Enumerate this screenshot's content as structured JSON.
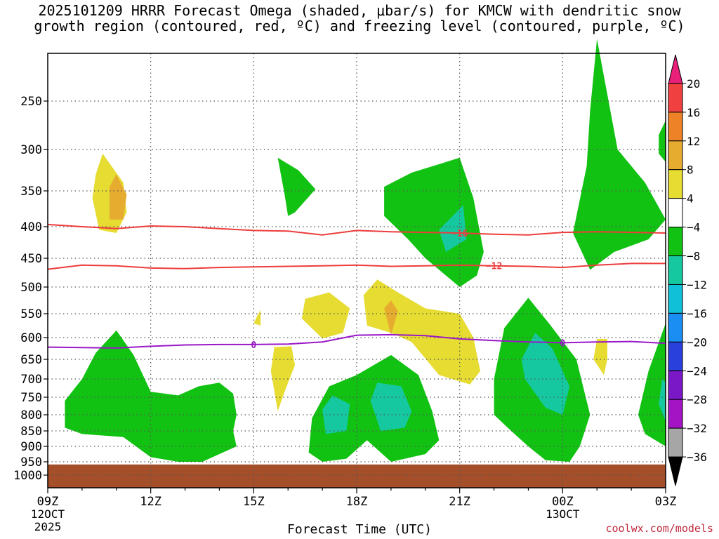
{
  "title_line1": "2025101209 HRRR Forecast Omega (shaded, μbar/s) for KMCW with dendritic snow",
  "title_line2": "growth region (contoured, red, ºC) and freezing level (contoured, purple, ºC)",
  "credit": "coolwx.com/models",
  "chart_data": {
    "type": "heatmap",
    "title": "2025101209 HRRR Forecast Omega (shaded, μbar/s) for KMCW with dendritic snow growth region (contoured, red, ºC) and freezing level (contoured, purple, ºC)",
    "xlabel": "Forecast Time (UTC)",
    "ylabel": "Pressure (hPa)",
    "x_range_hours": [
      0,
      18
    ],
    "y_levels": [
      250,
      300,
      350,
      400,
      450,
      500,
      550,
      600,
      650,
      700,
      750,
      800,
      850,
      900,
      950,
      1000
    ],
    "x_ticks": [
      {
        "h": 0,
        "label": "09Z",
        "sub1": "12OCT",
        "sub2": "2025"
      },
      {
        "h": 3,
        "label": "12Z",
        "sub1": "",
        "sub2": ""
      },
      {
        "h": 6,
        "label": "15Z",
        "sub1": "",
        "sub2": ""
      },
      {
        "h": 9,
        "label": "18Z",
        "sub1": "",
        "sub2": ""
      },
      {
        "h": 12,
        "label": "21Z",
        "sub1": "",
        "sub2": ""
      },
      {
        "h": 15,
        "label": "00Z",
        "sub1": "13OCT",
        "sub2": ""
      },
      {
        "h": 18,
        "label": "03Z",
        "sub1": "",
        "sub2": ""
      }
    ],
    "colorbar": {
      "labels": [
        "20",
        "16",
        "12",
        "8",
        "4",
        "−4",
        "−8",
        "−12",
        "−16",
        "−20",
        "−24",
        "−28",
        "−32",
        "−36"
      ],
      "colors": [
        "#e8207a",
        "#f04040",
        "#ee8226",
        "#e6ac30",
        "#e6dc32",
        "#ffffff",
        "#12c212",
        "#16c8a0",
        "#10c0d8",
        "#1a8ef2",
        "#2a40dc",
        "#7a18c8",
        "#a414c4",
        "#a6a6a6",
        "#000000"
      ]
    },
    "contours": [
      {
        "name": "-16",
        "color": "#ee3c3c",
        "label": "−16",
        "points": [
          [
            0,
            397
          ],
          [
            1,
            400
          ],
          [
            2,
            403
          ],
          [
            3,
            399
          ],
          [
            4,
            400
          ],
          [
            5,
            403
          ],
          [
            6,
            406
          ],
          [
            7,
            407
          ],
          [
            8,
            413
          ],
          [
            9,
            406
          ],
          [
            10,
            408
          ],
          [
            11,
            409
          ],
          [
            12,
            410
          ],
          [
            13,
            412
          ],
          [
            14,
            413
          ],
          [
            15,
            409
          ],
          [
            16,
            408
          ],
          [
            17,
            409
          ],
          [
            18,
            410
          ]
        ]
      },
      {
        "name": "-12",
        "color": "#ee3c3c",
        "label": "−12",
        "points": [
          [
            0,
            469
          ],
          [
            1,
            462
          ],
          [
            2,
            463
          ],
          [
            3,
            467
          ],
          [
            4,
            468
          ],
          [
            5,
            466
          ],
          [
            6,
            465
          ],
          [
            7,
            464
          ],
          [
            8,
            463
          ],
          [
            9,
            462
          ],
          [
            10,
            464
          ],
          [
            11,
            463
          ],
          [
            12,
            462
          ],
          [
            13,
            463
          ],
          [
            14,
            464
          ],
          [
            15,
            466
          ],
          [
            16,
            462
          ],
          [
            17,
            459
          ],
          [
            18,
            459
          ]
        ]
      },
      {
        "name": "0",
        "color": "#9a18c8",
        "label": "0",
        "points": [
          [
            0,
            622
          ],
          [
            1,
            623
          ],
          [
            2,
            624
          ],
          [
            3,
            620
          ],
          [
            4,
            617
          ],
          [
            5,
            616
          ],
          [
            6,
            616
          ],
          [
            7,
            615
          ],
          [
            8,
            610
          ],
          [
            9,
            595
          ],
          [
            10,
            594
          ],
          [
            11,
            596
          ],
          [
            12,
            603
          ],
          [
            13,
            607
          ],
          [
            14,
            610
          ],
          [
            15,
            612
          ],
          [
            16,
            610
          ],
          [
            17,
            609
          ],
          [
            18,
            613
          ]
        ]
      }
    ],
    "omega_regions": [
      {
        "category": "4 to 8",
        "points": [
          [
            1.4,
            330
          ],
          [
            1.6,
            305
          ],
          [
            2.2,
            340
          ],
          [
            2.3,
            380
          ],
          [
            2.0,
            410
          ],
          [
            1.5,
            405
          ],
          [
            1.3,
            360
          ]
        ]
      },
      {
        "category": "8 to 12",
        "points": [
          [
            1.8,
            345
          ],
          [
            2.0,
            330
          ],
          [
            2.3,
            355
          ],
          [
            2.2,
            390
          ],
          [
            1.8,
            390
          ]
        ]
      },
      {
        "category": "4 to 8",
        "points": [
          [
            6.1,
            555
          ],
          [
            6.2,
            543
          ],
          [
            6.2,
            575
          ],
          [
            6.0,
            570
          ]
        ]
      },
      {
        "category": "4 to 8",
        "points": [
          [
            6.6,
            622
          ],
          [
            7.1,
            620
          ],
          [
            7.2,
            665
          ],
          [
            6.9,
            735
          ],
          [
            6.7,
            790
          ],
          [
            6.5,
            680
          ]
        ]
      },
      {
        "category": "4 to 8",
        "points": [
          [
            7.5,
            522
          ],
          [
            8.2,
            510
          ],
          [
            8.8,
            540
          ],
          [
            8.6,
            590
          ],
          [
            8.0,
            602
          ],
          [
            7.4,
            560
          ]
        ]
      },
      {
        "category": "4 to 8",
        "points": [
          [
            9.2,
            515
          ],
          [
            9.6,
            487
          ],
          [
            10.2,
            510
          ],
          [
            11.0,
            540
          ],
          [
            12.0,
            550
          ],
          [
            12.4,
            600
          ],
          [
            12.6,
            680
          ],
          [
            12.3,
            715
          ],
          [
            11.4,
            690
          ],
          [
            11.0,
            648
          ],
          [
            10.6,
            610
          ],
          [
            10.0,
            590
          ],
          [
            9.3,
            575
          ]
        ]
      },
      {
        "category": "8 to 12",
        "points": [
          [
            9.8,
            540
          ],
          [
            10.0,
            525
          ],
          [
            10.2,
            545
          ],
          [
            10.0,
            595
          ]
        ]
      },
      {
        "category": "4 to 8",
        "points": [
          [
            16.0,
            603
          ],
          [
            16.3,
            603
          ],
          [
            16.3,
            650
          ],
          [
            16.2,
            690
          ],
          [
            15.9,
            650
          ]
        ]
      },
      {
        "category": "-4 to -8",
        "points": [
          [
            0.5,
            760
          ],
          [
            1.0,
            700
          ],
          [
            1.4,
            635
          ],
          [
            2.0,
            585
          ],
          [
            2.5,
            640
          ],
          [
            3.0,
            735
          ],
          [
            3.8,
            745
          ],
          [
            4.4,
            720
          ],
          [
            5.0,
            710
          ],
          [
            5.4,
            740
          ],
          [
            5.5,
            800
          ],
          [
            5.4,
            850
          ],
          [
            5.5,
            900
          ],
          [
            4.5,
            950
          ],
          [
            3.8,
            950
          ],
          [
            3.0,
            935
          ],
          [
            2.2,
            870
          ],
          [
            1.0,
            860
          ],
          [
            0.5,
            840
          ]
        ]
      },
      {
        "category": "-4 to -8",
        "points": [
          [
            6.9,
            355
          ],
          [
            6.7,
            310
          ],
          [
            7.3,
            325
          ],
          [
            7.8,
            348
          ],
          [
            7.2,
            380
          ],
          [
            7.0,
            385
          ]
        ]
      },
      {
        "category": "-4 to -8",
        "points": [
          [
            9.8,
            385
          ],
          [
            9.8,
            345
          ],
          [
            10.6,
            328
          ],
          [
            12.0,
            310
          ],
          [
            12.4,
            360
          ],
          [
            12.7,
            440
          ],
          [
            12.5,
            480
          ],
          [
            12.0,
            500
          ],
          [
            11.0,
            450
          ],
          [
            10.5,
            420
          ]
        ]
      },
      {
        "category": "-8 to -12",
        "points": [
          [
            11.4,
            405
          ],
          [
            12.1,
            370
          ],
          [
            12.2,
            420
          ],
          [
            11.6,
            440
          ]
        ]
      },
      {
        "category": "-4 to -8",
        "points": [
          [
            7.7,
            810
          ],
          [
            8.2,
            720
          ],
          [
            9.0,
            690
          ],
          [
            10.0,
            640
          ],
          [
            10.8,
            690
          ],
          [
            11.2,
            790
          ],
          [
            11.4,
            880
          ],
          [
            11.0,
            925
          ],
          [
            10.0,
            950
          ],
          [
            9.3,
            880
          ],
          [
            8.7,
            940
          ],
          [
            8.0,
            950
          ],
          [
            7.6,
            920
          ]
        ]
      },
      {
        "category": "-8 to -12",
        "points": [
          [
            8.0,
            785
          ],
          [
            8.3,
            745
          ],
          [
            8.8,
            770
          ],
          [
            8.7,
            850
          ],
          [
            8.1,
            860
          ]
        ]
      },
      {
        "category": "-8 to -12",
        "points": [
          [
            9.4,
            760
          ],
          [
            9.6,
            710
          ],
          [
            10.3,
            720
          ],
          [
            10.6,
            790
          ],
          [
            10.4,
            840
          ],
          [
            9.7,
            850
          ]
        ]
      },
      {
        "category": "-4 to -8",
        "points": [
          [
            13.0,
            700
          ],
          [
            13.3,
            580
          ],
          [
            14.0,
            520
          ],
          [
            14.6,
            570
          ],
          [
            15.4,
            650
          ],
          [
            15.8,
            800
          ],
          [
            15.5,
            900
          ],
          [
            15.2,
            950
          ],
          [
            14.5,
            945
          ],
          [
            14.0,
            900
          ],
          [
            13.5,
            850
          ],
          [
            13.0,
            800
          ]
        ]
      },
      {
        "category": "-8 to -12",
        "points": [
          [
            13.8,
            650
          ],
          [
            14.2,
            590
          ],
          [
            14.7,
            625
          ],
          [
            15.2,
            720
          ],
          [
            15.0,
            800
          ],
          [
            14.5,
            780
          ],
          [
            13.9,
            700
          ]
        ]
      },
      {
        "category": "-4 to -8",
        "points": [
          [
            15.3,
            410
          ],
          [
            15.7,
            320
          ],
          [
            15.8,
            260
          ],
          [
            16.0,
            220
          ],
          [
            16.6,
            300
          ],
          [
            17.4,
            340
          ],
          [
            18.0,
            390
          ],
          [
            17.5,
            420
          ],
          [
            16.5,
            440
          ],
          [
            15.8,
            470
          ]
        ]
      },
      {
        "category": "-4 to -8",
        "points": [
          [
            17.8,
            285
          ],
          [
            18.0,
            270
          ],
          [
            18.0,
            315
          ],
          [
            17.8,
            305
          ]
        ]
      },
      {
        "category": "-4 to -8",
        "points": [
          [
            17.2,
            800
          ],
          [
            17.5,
            680
          ],
          [
            18.0,
            570
          ],
          [
            18.0,
            900
          ],
          [
            17.4,
            860
          ]
        ]
      },
      {
        "category": "-8 to -12",
        "points": [
          [
            17.8,
            770
          ],
          [
            17.9,
            700
          ],
          [
            18.0,
            710
          ],
          [
            18.0,
            820
          ]
        ]
      }
    ],
    "ground": {
      "from_pressure": 960,
      "color": "#a54f2a"
    }
  }
}
